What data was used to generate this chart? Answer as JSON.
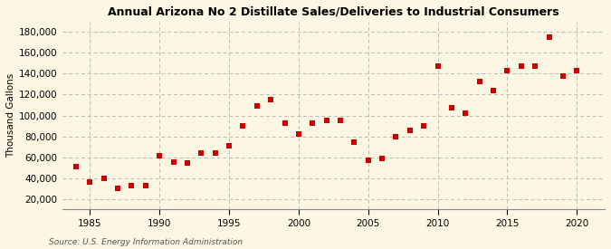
{
  "title": "Annual Arizona No 2 Distillate Sales/Deliveries to Industrial Consumers",
  "ylabel": "Thousand Gallons",
  "source_text": "Source: U.S. Energy Information Administration",
  "background_color": "#fdf6e3",
  "dot_color": "#cc0000",
  "years": [
    1984,
    1985,
    1986,
    1987,
    1988,
    1989,
    1990,
    1991,
    1992,
    1993,
    1994,
    1995,
    1996,
    1997,
    1998,
    1999,
    2000,
    2001,
    2002,
    2003,
    2004,
    2005,
    2006,
    2007,
    2008,
    2009,
    2010,
    2011,
    2012,
    2013,
    2014,
    2015,
    2016,
    2017,
    2018,
    2019,
    2020
  ],
  "values": [
    51000,
    36000,
    40000,
    30000,
    33000,
    33000,
    61000,
    55000,
    54000,
    64000,
    64000,
    71000,
    90000,
    109000,
    115000,
    93000,
    82000,
    93000,
    95000,
    95000,
    74000,
    57000,
    59000,
    80000,
    86000,
    90000,
    147000,
    107000,
    102000,
    133000,
    124000,
    143000,
    147000,
    147000,
    175000,
    138000,
    143000
  ],
  "xlim": [
    1983,
    2022
  ],
  "ylim": [
    10000,
    190000
  ],
  "yticks": [
    20000,
    40000,
    60000,
    80000,
    100000,
    120000,
    140000,
    160000,
    180000
  ],
  "xticks": [
    1985,
    1990,
    1995,
    2000,
    2005,
    2010,
    2015,
    2020
  ],
  "grid_color": "#bbbbbb",
  "marker_size": 14
}
